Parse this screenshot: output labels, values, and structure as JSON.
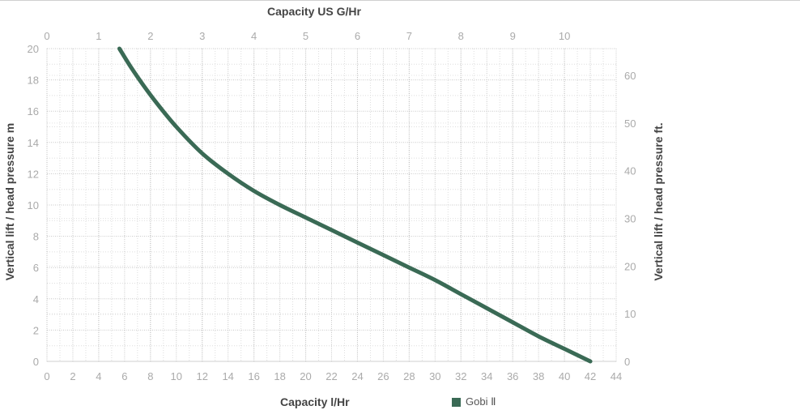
{
  "chart_data": {
    "type": "line",
    "xlabel": "Capacity l/Hr",
    "xlabel_top": "Capacity US G/Hr",
    "ylabel": "Vertical lift / head pressure m",
    "ylabel_right": "Vertical lift / head pressure ft.",
    "x_ticks": [
      0,
      2,
      4,
      6,
      8,
      10,
      12,
      14,
      16,
      18,
      20,
      22,
      24,
      26,
      28,
      30,
      32,
      34,
      36,
      38,
      40,
      42,
      44
    ],
    "x_top_ticks": [
      0,
      1,
      2,
      3,
      4,
      5,
      6,
      7,
      8,
      9,
      10
    ],
    "y_ticks": [
      0,
      2,
      4,
      6,
      8,
      10,
      12,
      14,
      16,
      18,
      20
    ],
    "y_right_ticks": [
      0,
      10,
      20,
      30,
      40,
      50,
      60
    ],
    "xlim": [
      0,
      44
    ],
    "ylim": [
      0,
      20
    ],
    "grid": true,
    "legend": "bottom",
    "series": [
      {
        "name": "Gobi Ⅱ",
        "color": "#3a6a55",
        "x": [
          5.6,
          6.5,
          7.5,
          8.5,
          10,
          12,
          14,
          16,
          18,
          20,
          22,
          24,
          26,
          28,
          30,
          32,
          34,
          36,
          38,
          40,
          42
        ],
        "y": [
          20,
          18.8,
          17.6,
          16.5,
          15.0,
          13.3,
          12.0,
          10.9,
          10.0,
          9.2,
          8.4,
          7.6,
          6.8,
          6.0,
          5.2,
          4.3,
          3.4,
          2.5,
          1.6,
          0.8,
          0
        ]
      }
    ]
  },
  "colors": {
    "axis_text": "#aaaaaa",
    "grid": "#c8c8c8",
    "title_text": "#444444"
  }
}
